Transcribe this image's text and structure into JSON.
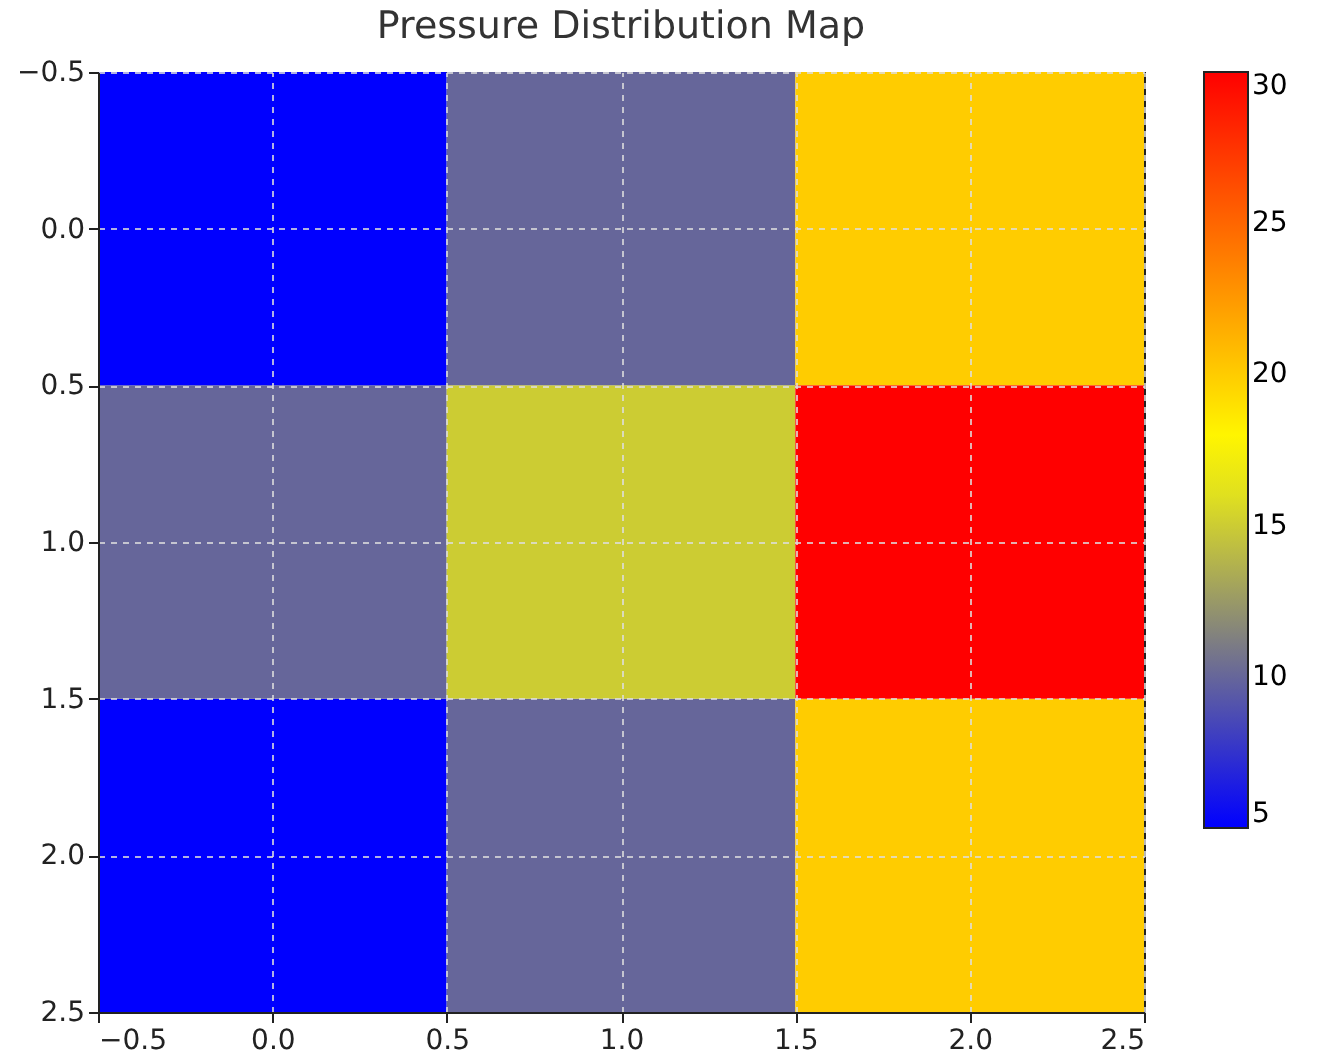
{
  "chart_data": {
    "type": "heatmap",
    "title": "Pressure Distribution Map",
    "x": [
      0,
      1,
      2
    ],
    "cells": [
      [
        5,
        10,
        20
      ],
      [
        10,
        15,
        30
      ],
      [
        5,
        10,
        20
      ]
    ],
    "xlim": [
      -0.5,
      2.5
    ],
    "xticks": [
      {
        "value": -0.5,
        "label": "−0.5"
      },
      {
        "value": 0,
        "label": "0.0"
      },
      {
        "value": 0.5,
        "label": "0.5"
      },
      {
        "value": 1,
        "label": "1.0"
      },
      {
        "value": 1.5,
        "label": "1.5"
      },
      {
        "value": 2,
        "label": "2.0"
      },
      {
        "value": 2.5,
        "label": "2.5"
      }
    ],
    "ylim": [
      2.5,
      -0.5
    ],
    "yticks": [
      {
        "value": -0.5,
        "label": "−0.5"
      },
      {
        "value": 0,
        "label": "0.0"
      },
      {
        "value": 0.5,
        "label": "0.5"
      },
      {
        "value": 1,
        "label": "1.0"
      },
      {
        "value": 1.5,
        "label": "1.5"
      },
      {
        "value": 2,
        "label": "2.0"
      },
      {
        "value": 2.5,
        "label": "2.5"
      }
    ],
    "clim": [
      5,
      30
    ],
    "cticks": [
      5,
      10,
      15,
      20,
      25,
      30
    ],
    "grid": true
  }
}
